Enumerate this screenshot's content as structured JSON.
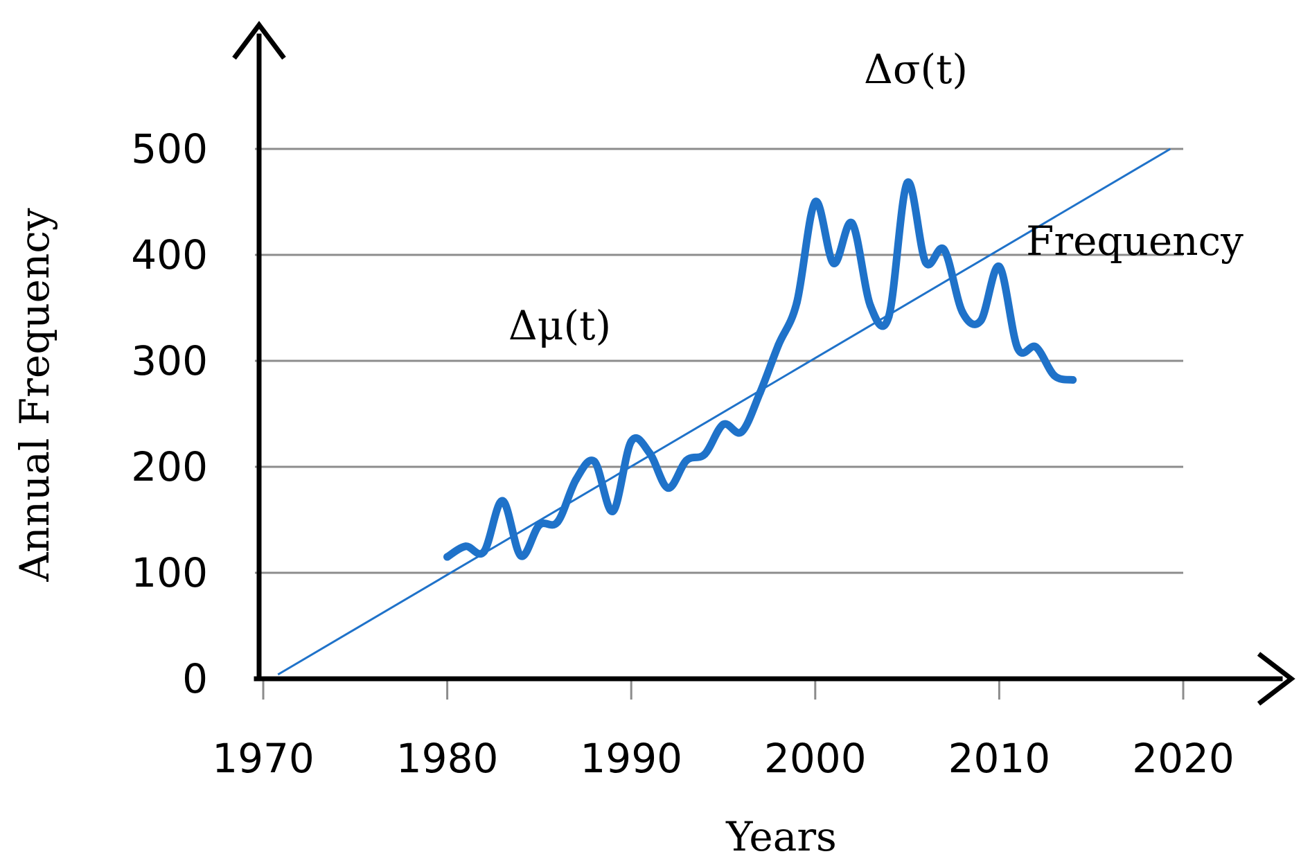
{
  "chart_data": {
    "type": "line",
    "xlabel": "Years",
    "ylabel": "Annual Frequency",
    "xlim": [
      1970,
      2020
    ],
    "ylim": [
      0,
      500
    ],
    "x_ticks": [
      "1970",
      "1980",
      "1990",
      "2000",
      "2010",
      "2020"
    ],
    "y_ticks": [
      "0",
      "100",
      "200",
      "300",
      "400",
      "500"
    ],
    "grid": true,
    "series": [
      {
        "name": "Frequency",
        "color": "#1f72c9",
        "x": [
          1980,
          1981,
          1982,
          1983,
          1984,
          1985,
          1986,
          1987,
          1988,
          1989,
          1990,
          1991,
          1992,
          1993,
          1994,
          1995,
          1996,
          1997,
          1998,
          1999,
          2000,
          2001,
          2002,
          2003,
          2004,
          2005,
          2006,
          2007,
          2008,
          2009,
          2010,
          2011,
          2012,
          2013,
          2014
        ],
        "y": [
          115,
          125,
          120,
          168,
          116,
          145,
          148,
          188,
          205,
          158,
          224,
          213,
          180,
          206,
          212,
          240,
          233,
          270,
          315,
          355,
          450,
          392,
          430,
          352,
          342,
          468,
          393,
          405,
          346,
          338,
          389,
          312,
          313,
          286,
          282
        ]
      }
    ],
    "trendline": {
      "color": "#1f72c9",
      "x": [
        1970.8,
        2019.3
      ],
      "y": [
        4,
        500
      ]
    },
    "annotations": [
      {
        "text": "Δμ(t)"
      },
      {
        "text": "Δσ(t)"
      }
    ]
  }
}
